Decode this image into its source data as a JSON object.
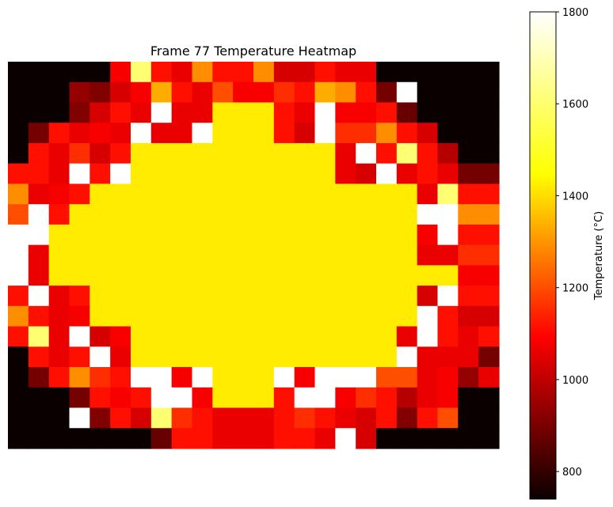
{
  "chart_data": {
    "type": "heatmap",
    "title": "Frame 77 Temperature Heatmap",
    "colormap": "hot",
    "value_range": [
      740,
      1800
    ],
    "axes_visible": false,
    "colorbar": {
      "label": "Temperature (°C)",
      "position": "right",
      "ticks": [
        800,
        1000,
        1200,
        1400,
        1600,
        1800
      ],
      "tick_labels": [
        "800",
        "1000",
        "1200",
        "1400",
        "1600",
        "1800"
      ]
    },
    "grid_rows": 19,
    "grid_cols": 24,
    "values": [
      [
        740,
        740,
        740,
        740,
        740,
        1100,
        1650,
        1150,
        1080,
        1350,
        1150,
        1150,
        1350,
        1050,
        1050,
        1150,
        1080,
        1080,
        740,
        740,
        740,
        740,
        740,
        740
      ],
      [
        740,
        740,
        740,
        950,
        920,
        1050,
        1100,
        1400,
        1150,
        1080,
        1250,
        1100,
        1100,
        1200,
        1150,
        1400,
        1350,
        1150,
        900,
        1800,
        740,
        740,
        740,
        740
      ],
      [
        740,
        740,
        740,
        920,
        1050,
        1150,
        1080,
        1800,
        1080,
        1080,
        1500,
        1500,
        1500,
        1150,
        1080,
        1800,
        1100,
        1100,
        1150,
        880,
        740,
        740,
        740,
        740
      ],
      [
        740,
        900,
        1150,
        1080,
        1100,
        1080,
        1800,
        1080,
        1080,
        1800,
        1500,
        1500,
        1500,
        1150,
        1050,
        1800,
        1200,
        1200,
        1350,
        1150,
        1050,
        740,
        740,
        740
      ],
      [
        740,
        1150,
        1080,
        1200,
        1050,
        1150,
        1500,
        1500,
        1500,
        1500,
        1500,
        1500,
        1500,
        1500,
        1500,
        1500,
        1080,
        1800,
        1150,
        1650,
        1150,
        1000,
        740,
        740
      ],
      [
        1150,
        1150,
        1080,
        1800,
        1150,
        1800,
        1500,
        1500,
        1500,
        1500,
        1500,
        1500,
        1500,
        1500,
        1500,
        1500,
        1080,
        1050,
        1800,
        1080,
        1150,
        1080,
        900,
        900
      ],
      [
        1350,
        1080,
        1100,
        1150,
        1500,
        1500,
        1500,
        1500,
        1500,
        1500,
        1500,
        1500,
        1500,
        1500,
        1500,
        1500,
        1500,
        1500,
        1500,
        1500,
        1080,
        1650,
        1150,
        1150
      ],
      [
        1250,
        1800,
        1150,
        1500,
        1500,
        1500,
        1500,
        1500,
        1500,
        1500,
        1500,
        1500,
        1500,
        1500,
        1500,
        1500,
        1500,
        1500,
        1500,
        1500,
        1800,
        1800,
        1350,
        1350
      ],
      [
        1800,
        1800,
        1500,
        1500,
        1500,
        1500,
        1500,
        1500,
        1500,
        1500,
        1500,
        1500,
        1500,
        1500,
        1500,
        1500,
        1500,
        1500,
        1500,
        1500,
        1100,
        1800,
        1150,
        1150
      ],
      [
        1800,
        1080,
        1500,
        1500,
        1500,
        1500,
        1500,
        1500,
        1500,
        1500,
        1500,
        1500,
        1500,
        1500,
        1500,
        1500,
        1500,
        1500,
        1500,
        1500,
        1080,
        1080,
        1200,
        1200
      ],
      [
        1800,
        1080,
        1500,
        1500,
        1500,
        1500,
        1500,
        1500,
        1500,
        1500,
        1500,
        1500,
        1500,
        1500,
        1500,
        1500,
        1500,
        1500,
        1500,
        1500,
        1500,
        1500,
        1100,
        1100
      ],
      [
        1150,
        1800,
        1080,
        1150,
        1500,
        1500,
        1500,
        1500,
        1500,
        1500,
        1500,
        1500,
        1500,
        1500,
        1500,
        1500,
        1500,
        1500,
        1500,
        1500,
        1050,
        1800,
        1150,
        1150
      ],
      [
        1350,
        1150,
        1080,
        1100,
        1500,
        1500,
        1500,
        1500,
        1500,
        1500,
        1500,
        1500,
        1500,
        1500,
        1500,
        1500,
        1500,
        1500,
        1500,
        1500,
        1800,
        1150,
        1050,
        1050
      ],
      [
        1150,
        1650,
        1080,
        1800,
        1050,
        1100,
        1500,
        1500,
        1500,
        1500,
        1500,
        1500,
        1500,
        1500,
        1500,
        1500,
        1500,
        1500,
        1500,
        1080,
        1800,
        1150,
        1080,
        1150
      ],
      [
        740,
        1150,
        1080,
        1150,
        1800,
        1080,
        1500,
        1500,
        1500,
        1500,
        1500,
        1500,
        1500,
        1500,
        1500,
        1500,
        1500,
        1500,
        1500,
        1800,
        1080,
        1080,
        1080,
        900
      ],
      [
        740,
        900,
        1150,
        1350,
        1200,
        1150,
        1800,
        1800,
        1100,
        1800,
        1500,
        1500,
        1500,
        1800,
        1100,
        1800,
        1800,
        1800,
        1250,
        1250,
        1080,
        1100,
        950,
        1080
      ],
      [
        740,
        740,
        740,
        900,
        1150,
        1100,
        1150,
        1800,
        1800,
        1100,
        1500,
        1500,
        1500,
        1150,
        1800,
        1800,
        1100,
        1200,
        1150,
        1000,
        1080,
        1100,
        740,
        740
      ],
      [
        740,
        740,
        740,
        1800,
        920,
        1150,
        1050,
        1650,
        1200,
        1150,
        1080,
        1080,
        1080,
        1150,
        1200,
        1150,
        1080,
        1050,
        1150,
        920,
        1150,
        1250,
        740,
        740
      ],
      [
        740,
        740,
        740,
        740,
        740,
        740,
        740,
        880,
        1150,
        1150,
        1080,
        1080,
        1080,
        1150,
        1150,
        1080,
        1800,
        1050,
        740,
        740,
        740,
        740,
        740,
        740
      ]
    ]
  }
}
